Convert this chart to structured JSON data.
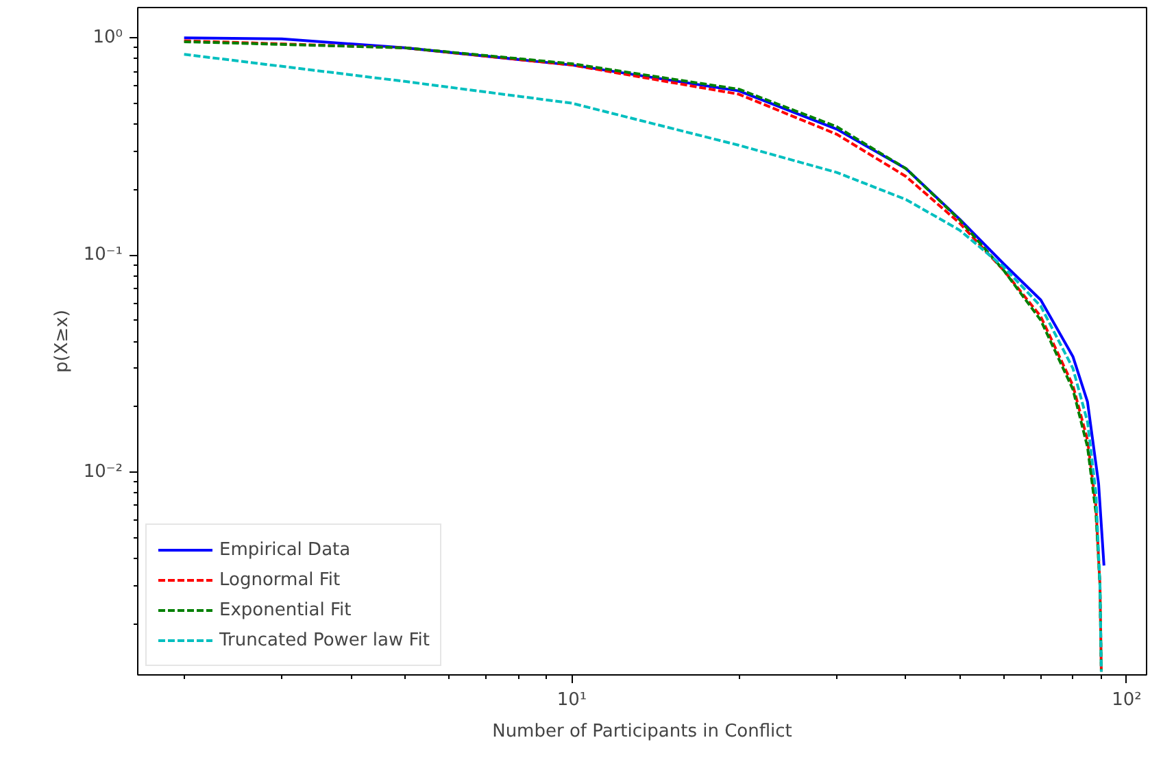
{
  "chart_data": {
    "type": "line",
    "xlabel": "Number of Participants in Conflict",
    "ylabel": "p(X≥x)",
    "log": "xy",
    "grid": false,
    "legend": "bottom left",
    "xlim": [
      1.65,
      108.6
    ],
    "ylim": [
      0.00116,
      1.38
    ],
    "xticks": [
      {
        "value": 2,
        "label": null
      },
      {
        "value": 3,
        "label": null
      },
      {
        "value": 4,
        "label": null
      },
      {
        "value": 5,
        "label": null
      },
      {
        "value": 6,
        "label": null
      },
      {
        "value": 7,
        "label": null
      },
      {
        "value": 8,
        "label": null
      },
      {
        "value": 9,
        "label": null
      },
      {
        "value": 10,
        "label": "10¹"
      },
      {
        "value": 20,
        "label": null
      },
      {
        "value": 30,
        "label": null
      },
      {
        "value": 40,
        "label": null
      },
      {
        "value": 50,
        "label": null
      },
      {
        "value": 60,
        "label": null
      },
      {
        "value": 70,
        "label": null
      },
      {
        "value": 80,
        "label": null
      },
      {
        "value": 90,
        "label": null
      },
      {
        "value": 100,
        "label": "10²"
      }
    ],
    "yticks": [
      {
        "value": 0.002,
        "label": null
      },
      {
        "value": 0.003,
        "label": null
      },
      {
        "value": 0.004,
        "label": null
      },
      {
        "value": 0.005,
        "label": null
      },
      {
        "value": 0.006,
        "label": null
      },
      {
        "value": 0.007,
        "label": null
      },
      {
        "value": 0.008,
        "label": null
      },
      {
        "value": 0.009,
        "label": null
      },
      {
        "value": 0.01,
        "label": "10⁻²"
      },
      {
        "value": 0.02,
        "label": null
      },
      {
        "value": 0.03,
        "label": null
      },
      {
        "value": 0.04,
        "label": null
      },
      {
        "value": 0.05,
        "label": null
      },
      {
        "value": 0.06,
        "label": null
      },
      {
        "value": 0.07,
        "label": null
      },
      {
        "value": 0.08,
        "label": null
      },
      {
        "value": 0.09,
        "label": null
      },
      {
        "value": 0.1,
        "label": "10⁻¹"
      },
      {
        "value": 0.2,
        "label": null
      },
      {
        "value": 0.3,
        "label": null
      },
      {
        "value": 0.4,
        "label": null
      },
      {
        "value": 0.5,
        "label": null
      },
      {
        "value": 0.6,
        "label": null
      },
      {
        "value": 0.7,
        "label": null
      },
      {
        "value": 0.8,
        "label": null
      },
      {
        "value": 0.9,
        "label": null
      },
      {
        "value": 1,
        "label": "10⁰"
      }
    ],
    "series": [
      {
        "name": "Empirical Data",
        "color": "#0000ff",
        "line_style": "solid",
        "x": [
          2,
          3,
          5,
          10,
          20,
          30,
          40,
          50,
          60,
          70,
          80,
          85,
          89,
          91
        ],
        "values": [
          1.0,
          0.99,
          0.9,
          0.75,
          0.57,
          0.38,
          0.25,
          0.146,
          0.091,
          0.062,
          0.034,
          0.021,
          0.0088,
          0.0037
        ]
      },
      {
        "name": "Lognormal Fit",
        "color": "#ff0000",
        "line_style": "dashed",
        "x": [
          2,
          5,
          10,
          20,
          30,
          40,
          50,
          60,
          70,
          80,
          85,
          88,
          89.5,
          90
        ],
        "values": [
          0.97,
          0.9,
          0.75,
          0.55,
          0.36,
          0.23,
          0.14,
          0.085,
          0.052,
          0.025,
          0.014,
          0.007,
          0.003,
          0.0012
        ]
      },
      {
        "name": "Exponential Fit",
        "color": "#008000",
        "line_style": "dashed",
        "x": [
          2,
          5,
          10,
          20,
          30,
          40,
          50,
          60,
          70,
          80,
          85,
          88,
          89.5,
          90
        ],
        "values": [
          0.96,
          0.9,
          0.76,
          0.58,
          0.39,
          0.25,
          0.145,
          0.085,
          0.05,
          0.024,
          0.013,
          0.0065,
          0.003,
          0.0012
        ]
      },
      {
        "name": "Truncated Power law Fit",
        "color": "#00bfbf",
        "line_style": "dashed",
        "x": [
          2,
          5,
          10,
          20,
          30,
          40,
          50,
          60,
          70,
          80,
          85,
          88,
          89.5,
          90
        ],
        "values": [
          0.84,
          0.63,
          0.5,
          0.32,
          0.24,
          0.18,
          0.13,
          0.088,
          0.058,
          0.03,
          0.017,
          0.008,
          0.003,
          0.0012
        ]
      }
    ]
  }
}
